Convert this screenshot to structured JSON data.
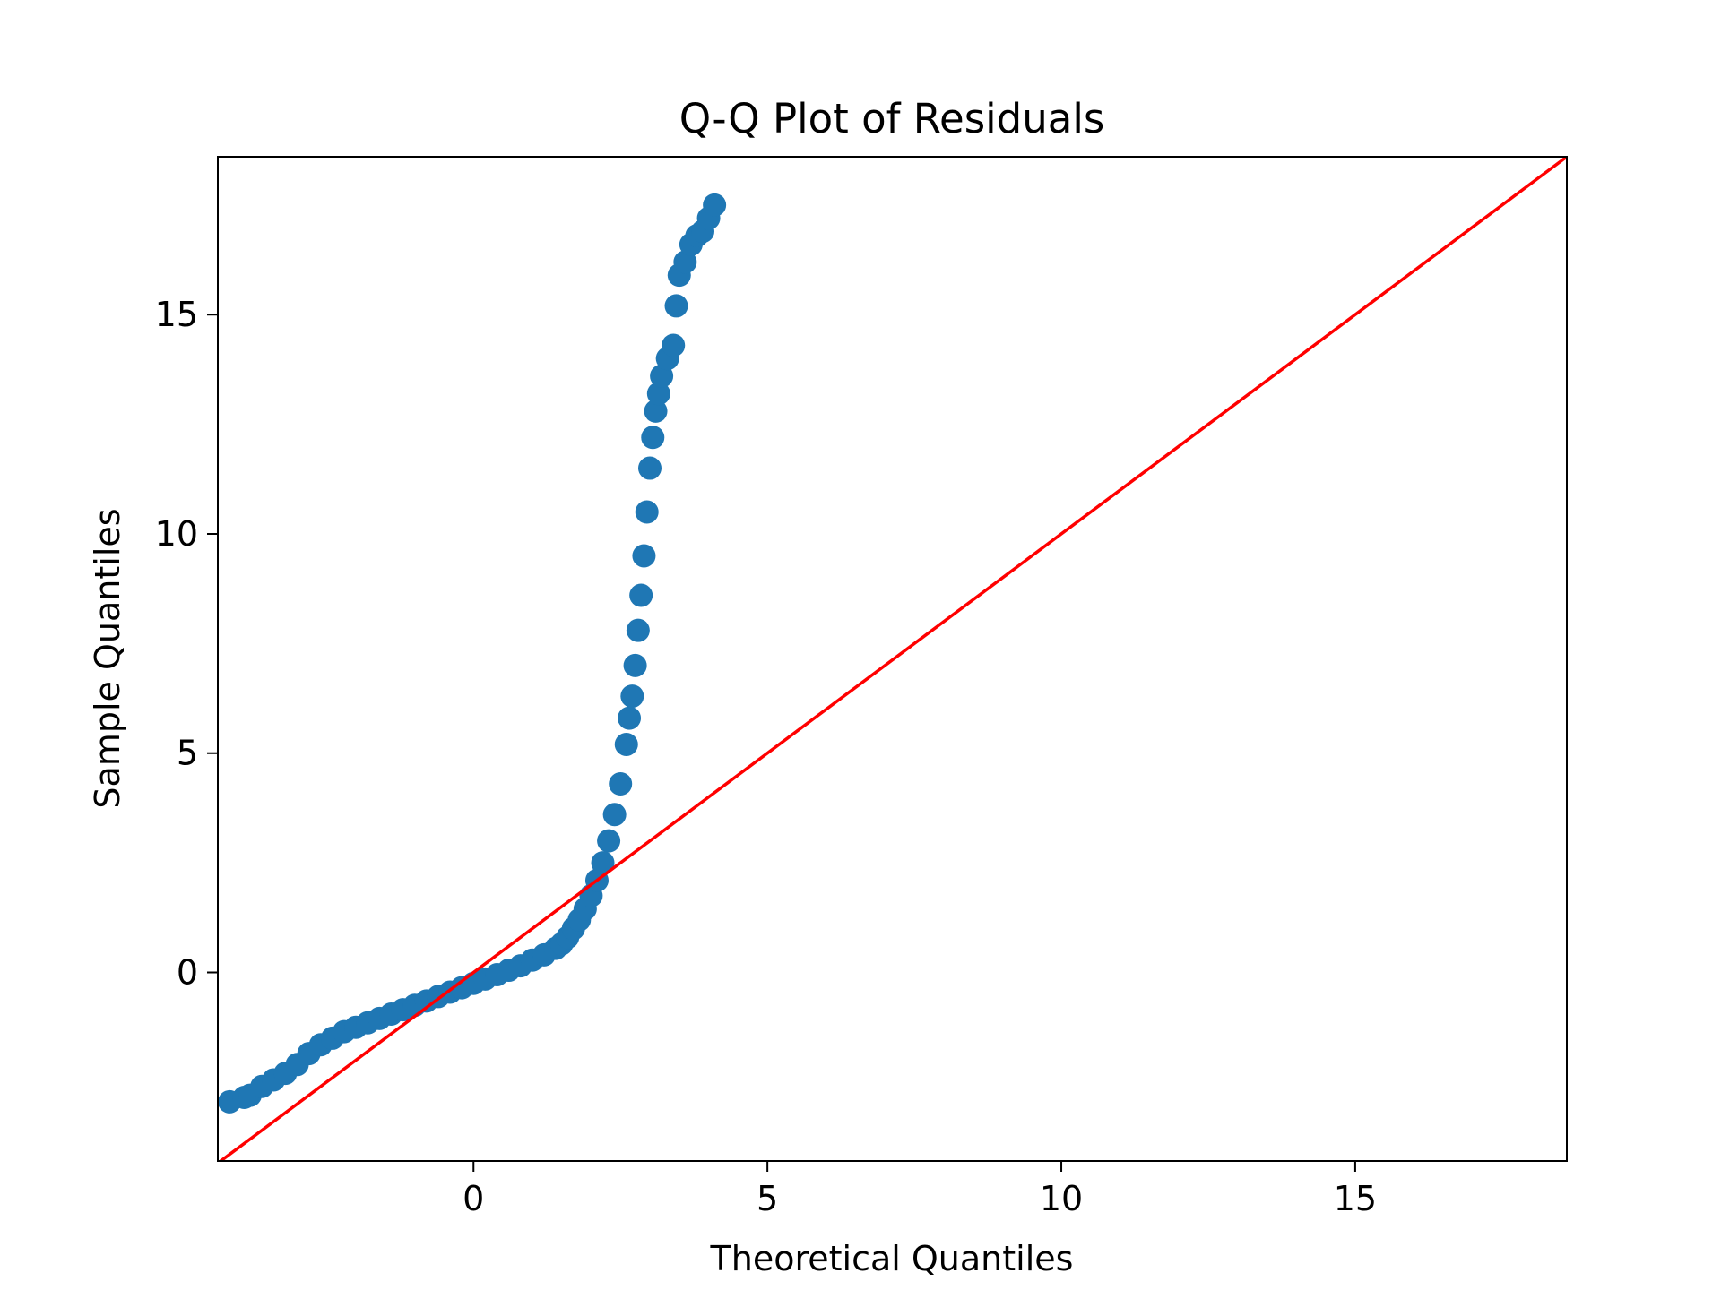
{
  "chart_data": {
    "type": "scatter",
    "title": "Q-Q Plot of Residuals",
    "xlabel": "Theoretical Quantiles",
    "ylabel": "Sample Quantiles",
    "xlim": [
      -4.35,
      18.6
    ],
    "ylim": [
      -4.3,
      18.6
    ],
    "x_ticks": [
      0,
      5,
      10,
      15
    ],
    "y_ticks": [
      0,
      5,
      10,
      15
    ],
    "grid": false,
    "legend": "none",
    "marker_color": "#1f77b4",
    "reference_line": {
      "color": "#ff0000",
      "slope": 1,
      "intercept": 0
    },
    "points_x": [
      -4.15,
      -3.9,
      -3.8,
      -3.6,
      -3.4,
      -3.2,
      -3.0,
      -2.8,
      -2.6,
      -2.4,
      -2.2,
      -2.0,
      -1.8,
      -1.6,
      -1.4,
      -1.2,
      -1.0,
      -0.8,
      -0.6,
      -0.4,
      -0.2,
      0.0,
      0.2,
      0.4,
      0.6,
      0.8,
      1.0,
      1.2,
      1.4,
      1.5,
      1.6,
      1.7,
      1.8,
      1.9,
      2.0,
      2.1,
      2.2,
      2.3,
      2.4,
      2.5,
      2.6,
      2.65,
      2.7,
      2.75,
      2.8,
      2.85,
      2.9,
      2.95,
      3.0,
      3.05,
      3.1,
      3.15,
      3.2,
      3.3,
      3.4,
      3.45,
      3.5,
      3.6,
      3.7,
      3.8,
      3.9,
      4.0,
      4.1
    ],
    "points_y": [
      -2.95,
      -2.85,
      -2.8,
      -2.6,
      -2.45,
      -2.3,
      -2.1,
      -1.85,
      -1.65,
      -1.5,
      -1.35,
      -1.25,
      -1.15,
      -1.05,
      -0.95,
      -0.85,
      -0.75,
      -0.65,
      -0.55,
      -0.45,
      -0.35,
      -0.25,
      -0.15,
      -0.05,
      0.05,
      0.15,
      0.28,
      0.4,
      0.55,
      0.65,
      0.8,
      1.0,
      1.2,
      1.45,
      1.75,
      2.1,
      2.5,
      3.0,
      3.6,
      4.3,
      5.2,
      5.8,
      6.3,
      7.0,
      7.8,
      8.6,
      9.5,
      10.5,
      11.5,
      12.2,
      12.8,
      13.2,
      13.6,
      14.0,
      14.3,
      15.2,
      15.9,
      16.2,
      16.6,
      16.8,
      16.9,
      17.2,
      17.5
    ]
  }
}
